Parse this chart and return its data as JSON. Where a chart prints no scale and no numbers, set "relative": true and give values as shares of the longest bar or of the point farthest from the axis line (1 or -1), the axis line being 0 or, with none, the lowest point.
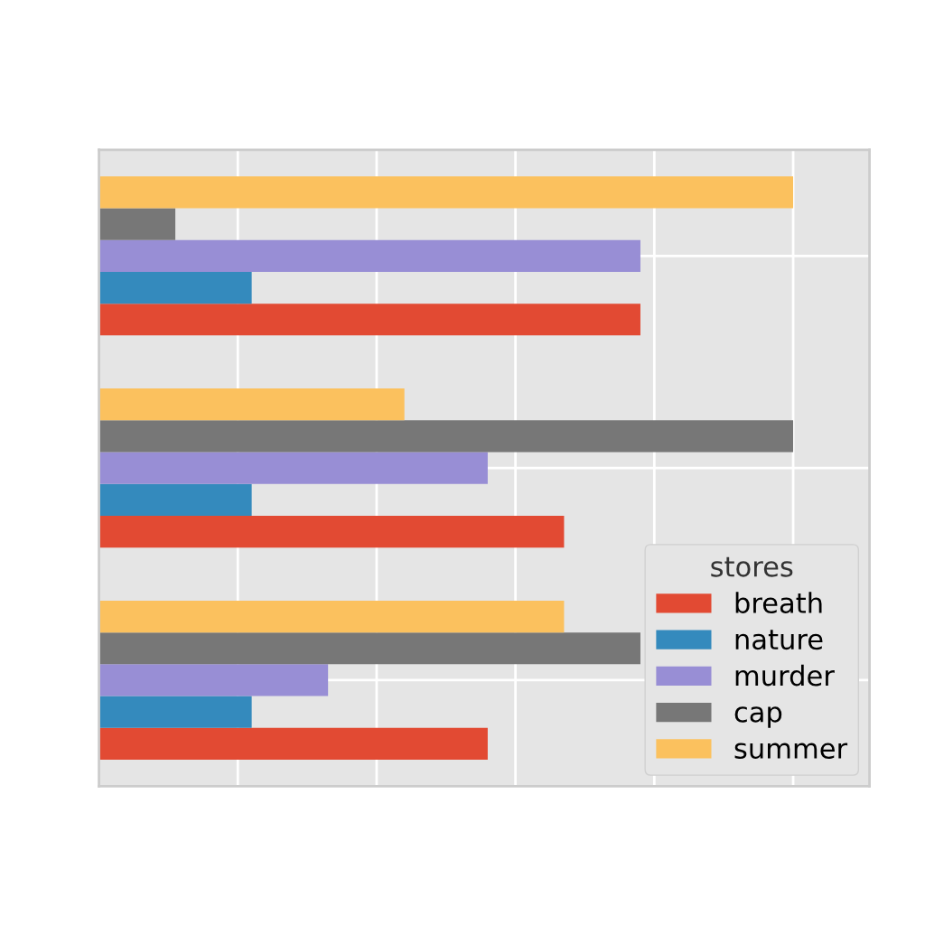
{
  "chart_data": {
    "type": "bar",
    "orientation": "horizontal",
    "relative": true,
    "categories": [
      null,
      null,
      null
    ],
    "series": [
      {
        "name": "breath",
        "color": "#e24a33",
        "values": [
          0.78,
          0.67,
          0.56
        ]
      },
      {
        "name": "nature",
        "color": "#348abd",
        "values": [
          0.22,
          0.22,
          0.22
        ]
      },
      {
        "name": "murder",
        "color": "#988ed5",
        "values": [
          0.78,
          0.56,
          0.33
        ]
      },
      {
        "name": "cap",
        "color": "#777777",
        "values": [
          0.11,
          1,
          0.78
        ]
      },
      {
        "name": "summer",
        "color": "#fbc15e",
        "values": [
          1,
          0.44,
          0.67
        ]
      }
    ],
    "legend_title": "stores",
    "legend": "bottom right",
    "grid": true
  }
}
